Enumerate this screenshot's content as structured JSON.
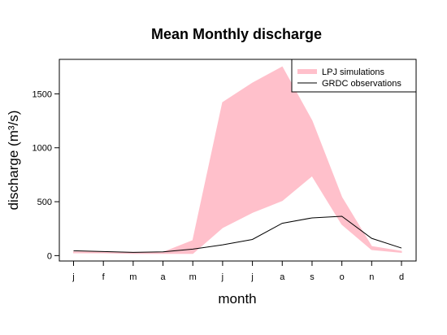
{
  "chart_data": {
    "type": "area",
    "title": "Mean Monthly discharge",
    "xlabel": "month",
    "ylabel": "discharge (m³/s)",
    "categories": [
      "j",
      "f",
      "m",
      "a",
      "m",
      "j",
      "j",
      "a",
      "s",
      "o",
      "n",
      "d"
    ],
    "ylim": [
      -50,
      1820
    ],
    "yticks": [
      0,
      500,
      1000,
      1500
    ],
    "legend_position": "top-right",
    "series": [
      {
        "name": "LPJ simulations",
        "kind": "band",
        "color": "#FFC0CB",
        "lower": [
          25,
          25,
          20,
          20,
          20,
          260,
          400,
          510,
          740,
          290,
          55,
          30
        ],
        "upper": [
          35,
          35,
          30,
          30,
          140,
          1420,
          1600,
          1750,
          1250,
          540,
          85,
          40
        ]
      },
      {
        "name": "GRDC observations",
        "kind": "line",
        "color": "#000000",
        "values": [
          45,
          38,
          30,
          35,
          60,
          100,
          150,
          300,
          350,
          365,
          160,
          70
        ]
      }
    ]
  }
}
